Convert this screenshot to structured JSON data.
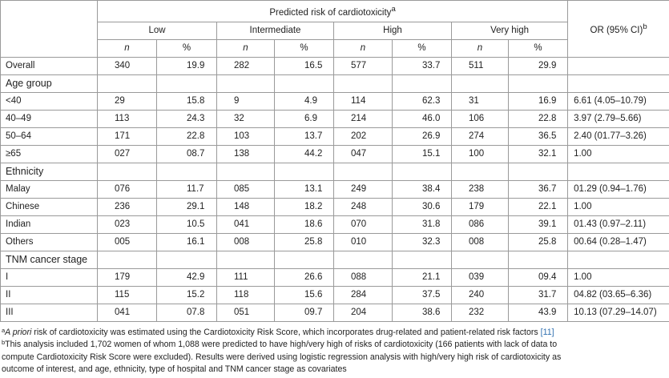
{
  "header": {
    "group_title": "Predicted risk of cardiotoxicity",
    "group_title_sup": "a",
    "levels": [
      "Low",
      "Intermediate",
      "High",
      "Very high"
    ],
    "n_label": "n",
    "pct_label": "%",
    "or_label": "OR (95% CI)",
    "or_sup": "b"
  },
  "rows": [
    {
      "type": "data",
      "label": "Overall",
      "vals": [
        "340",
        "19.9",
        "282",
        "16.5",
        "577",
        "33.7",
        "511",
        "29.9"
      ],
      "or": ""
    },
    {
      "type": "section",
      "label": "Age group"
    },
    {
      "type": "data",
      "label": "<40",
      "vals": [
        "29",
        "15.8",
        "9",
        "4.9",
        "114",
        "62.3",
        "31",
        "16.9"
      ],
      "or": "6.61 (4.05–10.79)"
    },
    {
      "type": "data",
      "label": "40–49",
      "vals": [
        "113",
        "24.3",
        "32",
        "6.9",
        "214",
        "46.0",
        "106",
        "22.8"
      ],
      "or": "3.97 (2.79–5.66)"
    },
    {
      "type": "data",
      "label": "50–64",
      "vals": [
        "171",
        "22.8",
        "103",
        "13.7",
        "202",
        "26.9",
        "274",
        "36.5"
      ],
      "or": "2.40 (01.77–3.26)"
    },
    {
      "type": "data",
      "label": "≥65",
      "vals": [
        "027",
        "08.7",
        "138",
        "44.2",
        "047",
        "15.1",
        "100",
        "32.1"
      ],
      "or": "1.00"
    },
    {
      "type": "section",
      "label": "Ethnicity"
    },
    {
      "type": "data",
      "label": "Malay",
      "vals": [
        "076",
        "11.7",
        "085",
        "13.1",
        "249",
        "38.4",
        "238",
        "36.7"
      ],
      "or": "01.29 (0.94–1.76)"
    },
    {
      "type": "data",
      "label": "Chinese",
      "vals": [
        "236",
        "29.1",
        "148",
        "18.2",
        "248",
        "30.6",
        "179",
        "22.1"
      ],
      "or": "1.00"
    },
    {
      "type": "data",
      "label": "Indian",
      "vals": [
        "023",
        "10.5",
        "041",
        "18.6",
        "070",
        "31.8",
        "086",
        "39.1"
      ],
      "or": "01.43 (0.97–2.11)"
    },
    {
      "type": "data",
      "label": "Others",
      "vals": [
        "005",
        "16.1",
        "008",
        "25.8",
        "010",
        "32.3",
        "008",
        "25.8"
      ],
      "or": "00.64 (0.28–1.47)"
    },
    {
      "type": "section",
      "label": "TNM cancer stage"
    },
    {
      "type": "data",
      "label": "I",
      "vals": [
        "179",
        "42.9",
        "111",
        "26.6",
        "088",
        "21.1",
        "039",
        "09.4"
      ],
      "or": "1.00"
    },
    {
      "type": "data",
      "label": "II",
      "vals": [
        "115",
        "15.2",
        "118",
        "15.6",
        "284",
        "37.5",
        "240",
        "31.7"
      ],
      "or": "04.82 (03.65–6.36)"
    },
    {
      "type": "data",
      "label": "III",
      "vals": [
        "041",
        "07.8",
        "051",
        "09.7",
        "204",
        "38.6",
        "232",
        "43.9"
      ],
      "or": "10.13 (07.29–14.07)"
    }
  ],
  "footnotes": {
    "a_mark": "a",
    "a_italic": "A priori",
    "a_text": " risk of cardiotoxicity was estimated using the Cardiotoxicity Risk Score, which incorporates drug-related and patient-related risk factors ",
    "a_ref": "[11]",
    "b_mark": "b",
    "b_line1": "This analysis included 1,702 women of whom 1,088 were predicted to have high/very high of risks of cardiotoxicity (166 patients with lack of data to",
    "b_line2": "compute Cardiotoxicity Risk Score were excluded). Results were derived using logistic regression analysis with high/very high risk of cardiotoxicity as",
    "b_line3": "outcome of interest, and age, ethnicity, type of hospital and TNM cancer stage as covariates"
  },
  "colors": {
    "border": "#9a9a9a",
    "text": "#222222",
    "link": "#3070b0"
  }
}
